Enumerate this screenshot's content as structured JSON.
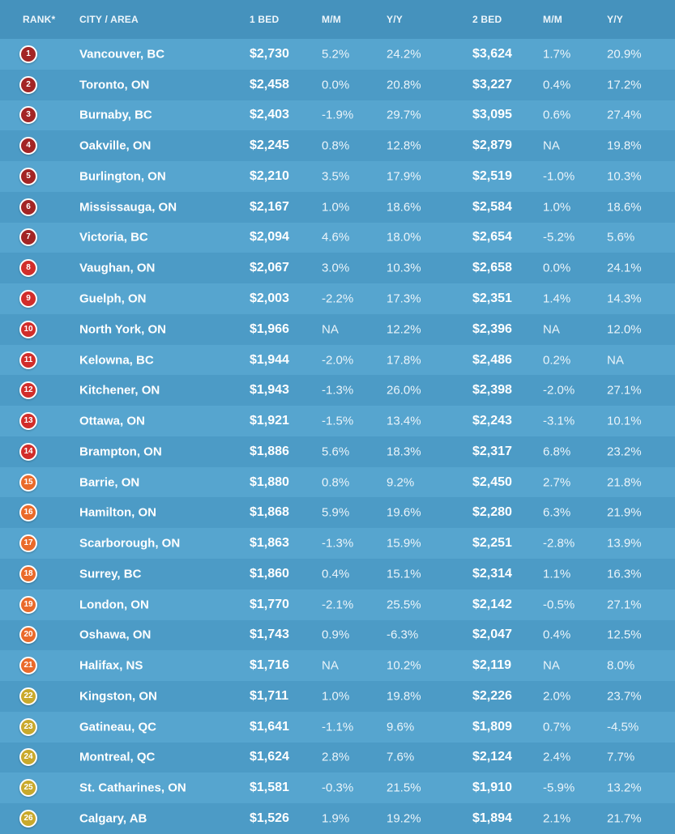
{
  "chart_data": {
    "type": "table",
    "columns": [
      "RANK*",
      "CITY / AREA",
      "1 BED",
      "M/M",
      "Y/Y",
      "2 BED",
      "M/M",
      "Y/Y"
    ],
    "rows": [
      {
        "rank": "1",
        "city": "Vancouver, BC",
        "one_bed": "$2,730",
        "one_mm": "5.2%",
        "one_yy": "24.2%",
        "two_bed": "$3,624",
        "two_mm": "1.7%",
        "two_yy": "20.9%"
      },
      {
        "rank": "2",
        "city": "Toronto, ON",
        "one_bed": "$2,458",
        "one_mm": "0.0%",
        "one_yy": "20.8%",
        "two_bed": "$3,227",
        "two_mm": "0.4%",
        "two_yy": "17.2%"
      },
      {
        "rank": "3",
        "city": "Burnaby, BC",
        "one_bed": "$2,403",
        "one_mm": "-1.9%",
        "one_yy": "29.7%",
        "two_bed": "$3,095",
        "two_mm": "0.6%",
        "two_yy": "27.4%"
      },
      {
        "rank": "4",
        "city": "Oakville, ON",
        "one_bed": "$2,245",
        "one_mm": "0.8%",
        "one_yy": "12.8%",
        "two_bed": "$2,879",
        "two_mm": "NA",
        "two_yy": "19.8%"
      },
      {
        "rank": "5",
        "city": "Burlington, ON",
        "one_bed": "$2,210",
        "one_mm": "3.5%",
        "one_yy": "17.9%",
        "two_bed": "$2,519",
        "two_mm": "-1.0%",
        "two_yy": "10.3%"
      },
      {
        "rank": "6",
        "city": "Mississauga, ON",
        "one_bed": "$2,167",
        "one_mm": "1.0%",
        "one_yy": "18.6%",
        "two_bed": "$2,584",
        "two_mm": "1.0%",
        "two_yy": "18.6%"
      },
      {
        "rank": "7",
        "city": "Victoria, BC",
        "one_bed": "$2,094",
        "one_mm": "4.6%",
        "one_yy": "18.0%",
        "two_bed": "$2,654",
        "two_mm": "-5.2%",
        "two_yy": "5.6%"
      },
      {
        "rank": "8",
        "city": "Vaughan, ON",
        "one_bed": "$2,067",
        "one_mm": "3.0%",
        "one_yy": "10.3%",
        "two_bed": "$2,658",
        "two_mm": "0.0%",
        "two_yy": "24.1%"
      },
      {
        "rank": "9",
        "city": "Guelph, ON",
        "one_bed": "$2,003",
        "one_mm": "-2.2%",
        "one_yy": "17.3%",
        "two_bed": "$2,351",
        "two_mm": "1.4%",
        "two_yy": "14.3%"
      },
      {
        "rank": "10",
        "city": "North York, ON",
        "one_bed": "$1,966",
        "one_mm": "NA",
        "one_yy": "12.2%",
        "two_bed": "$2,396",
        "two_mm": "NA",
        "two_yy": "12.0%"
      },
      {
        "rank": "11",
        "city": "Kelowna, BC",
        "one_bed": "$1,944",
        "one_mm": "-2.0%",
        "one_yy": "17.8%",
        "two_bed": "$2,486",
        "two_mm": "0.2%",
        "two_yy": "NA"
      },
      {
        "rank": "12",
        "city": "Kitchener, ON",
        "one_bed": "$1,943",
        "one_mm": "-1.3%",
        "one_yy": "26.0%",
        "two_bed": "$2,398",
        "two_mm": "-2.0%",
        "two_yy": "27.1%"
      },
      {
        "rank": "13",
        "city": "Ottawa, ON",
        "one_bed": "$1,921",
        "one_mm": "-1.5%",
        "one_yy": "13.4%",
        "two_bed": "$2,243",
        "two_mm": "-3.1%",
        "two_yy": "10.1%"
      },
      {
        "rank": "14",
        "city": "Brampton, ON",
        "one_bed": "$1,886",
        "one_mm": "5.6%",
        "one_yy": "18.3%",
        "two_bed": "$2,317",
        "two_mm": "6.8%",
        "two_yy": "23.2%"
      },
      {
        "rank": "15",
        "city": "Barrie, ON",
        "one_bed": "$1,880",
        "one_mm": "0.8%",
        "one_yy": "9.2%",
        "two_bed": "$2,450",
        "two_mm": "2.7%",
        "two_yy": "21.8%"
      },
      {
        "rank": "16",
        "city": "Hamilton, ON",
        "one_bed": "$1,868",
        "one_mm": "5.9%",
        "one_yy": "19.6%",
        "two_bed": "$2,280",
        "two_mm": "6.3%",
        "two_yy": "21.9%"
      },
      {
        "rank": "17",
        "city": "Scarborough, ON",
        "one_bed": "$1,863",
        "one_mm": "-1.3%",
        "one_yy": "15.9%",
        "two_bed": "$2,251",
        "two_mm": "-2.8%",
        "two_yy": "13.9%"
      },
      {
        "rank": "18",
        "city": "Surrey, BC",
        "one_bed": "$1,860",
        "one_mm": "0.4%",
        "one_yy": "15.1%",
        "two_bed": "$2,314",
        "two_mm": "1.1%",
        "two_yy": "16.3%"
      },
      {
        "rank": "19",
        "city": "London, ON",
        "one_bed": "$1,770",
        "one_mm": "-2.1%",
        "one_yy": "25.5%",
        "two_bed": "$2,142",
        "two_mm": "-0.5%",
        "two_yy": "27.1%"
      },
      {
        "rank": "20",
        "city": "Oshawa, ON",
        "one_bed": "$1,743",
        "one_mm": "0.9%",
        "one_yy": "-6.3%",
        "two_bed": "$2,047",
        "two_mm": "0.4%",
        "two_yy": "12.5%"
      },
      {
        "rank": "21",
        "city": "Halifax, NS",
        "one_bed": "$1,716",
        "one_mm": "NA",
        "one_yy": "10.2%",
        "two_bed": "$2,119",
        "two_mm": "NA",
        "two_yy": "8.0%"
      },
      {
        "rank": "22",
        "city": "Kingston, ON",
        "one_bed": "$1,711",
        "one_mm": "1.0%",
        "one_yy": "19.8%",
        "two_bed": "$2,226",
        "two_mm": "2.0%",
        "two_yy": "23.7%"
      },
      {
        "rank": "23",
        "city": "Gatineau, QC",
        "one_bed": "$1,641",
        "one_mm": "-1.1%",
        "one_yy": "9.6%",
        "two_bed": "$1,809",
        "two_mm": "0.7%",
        "two_yy": "-4.5%"
      },
      {
        "rank": "24",
        "city": "Montreal, QC",
        "one_bed": "$1,624",
        "one_mm": "2.8%",
        "one_yy": "7.6%",
        "two_bed": "$2,124",
        "two_mm": "2.4%",
        "two_yy": "7.7%"
      },
      {
        "rank": "25",
        "city": "St. Catharines, ON",
        "one_bed": "$1,581",
        "one_mm": "-0.3%",
        "one_yy": "21.5%",
        "two_bed": "$1,910",
        "two_mm": "-5.9%",
        "two_yy": "13.2%"
      },
      {
        "rank": "26",
        "city": "Calgary, AB",
        "one_bed": "$1,526",
        "one_mm": "1.9%",
        "one_yy": "19.2%",
        "two_bed": "$1,894",
        "two_mm": "2.1%",
        "two_yy": "21.7%"
      }
    ],
    "rank_badge_colors": [
      "#a32525",
      "#a32525",
      "#a32525",
      "#a32525",
      "#a32525",
      "#a32525",
      "#a32525",
      "#d12d2a",
      "#d12d2a",
      "#d12d2a",
      "#d12d2a",
      "#d12d2a",
      "#d12d2a",
      "#d12d2a",
      "#ea6a2a",
      "#ea6a2a",
      "#ea6a2a",
      "#ea6a2a",
      "#ea6a2a",
      "#ea6a2a",
      "#ea6a2a",
      "#c9a92c",
      "#c9a92c",
      "#c9a92c",
      "#c9a92c",
      "#c9a92c"
    ],
    "colors": {
      "background": "#4e9bc4",
      "row_light": "#56a5cf",
      "row_dark": "#4c9bc6",
      "text": "#ffffff"
    }
  }
}
